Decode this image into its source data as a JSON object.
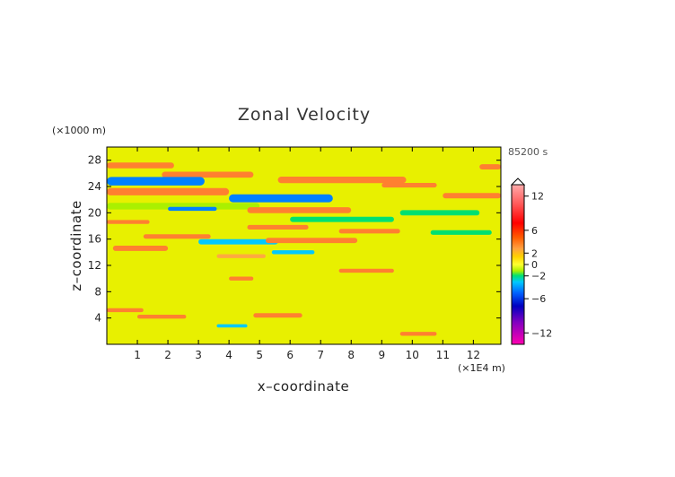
{
  "chart_data": {
    "type": "heatmap",
    "title": "Zonal Velocity",
    "xlabel": "x–coordinate",
    "ylabel": "z–coordinate",
    "x_unit": "(×1E4 m)",
    "y_unit": "(×1000 m)",
    "time_label": "85200 s",
    "xlim": [
      0,
      12.9
    ],
    "ylim": [
      0,
      30
    ],
    "x_ticks": [
      1,
      2,
      3,
      4,
      5,
      6,
      7,
      8,
      9,
      10,
      11,
      12
    ],
    "y_ticks": [
      4,
      8,
      12,
      16,
      20,
      24,
      28
    ],
    "colorbar": {
      "ticks": [
        12,
        6,
        2,
        0,
        -2,
        -6,
        -12
      ],
      "vmin": -14,
      "vmax": 14,
      "extend_top": true
    },
    "bands": [
      {
        "y": 27.2,
        "x0": 0.0,
        "x1": 2.2,
        "v": 3.0,
        "h": 0.9
      },
      {
        "y": 27.0,
        "x0": 12.2,
        "x1": 12.9,
        "v": 3.0,
        "h": 0.8
      },
      {
        "y": 25.8,
        "x0": 1.8,
        "x1": 4.8,
        "v": 3.0,
        "h": 0.9
      },
      {
        "y": 24.8,
        "x0": 0.0,
        "x1": 3.2,
        "v": -5.0,
        "h": 1.3
      },
      {
        "y": 25.0,
        "x0": 5.6,
        "x1": 9.8,
        "v": 3.0,
        "h": 1.0
      },
      {
        "y": 24.2,
        "x0": 9.0,
        "x1": 10.8,
        "v": 3.0,
        "h": 0.7
      },
      {
        "y": 23.2,
        "x0": 0.0,
        "x1": 4.0,
        "v": 3.0,
        "h": 1.1
      },
      {
        "y": 22.2,
        "x0": 4.0,
        "x1": 7.4,
        "v": -5.0,
        "h": 1.2
      },
      {
        "y": 22.6,
        "x0": 11.0,
        "x1": 12.9,
        "v": 3.0,
        "h": 0.8
      },
      {
        "y": 21.0,
        "x0": 0.0,
        "x1": 5.0,
        "v": -1.0,
        "h": 1.0
      },
      {
        "y": 20.6,
        "x0": 2.0,
        "x1": 3.6,
        "v": -4.0,
        "h": 0.6
      },
      {
        "y": 20.4,
        "x0": 4.6,
        "x1": 8.0,
        "v": 3.0,
        "h": 0.9
      },
      {
        "y": 20.0,
        "x0": 9.6,
        "x1": 12.2,
        "v": -1.5,
        "h": 0.8
      },
      {
        "y": 19.0,
        "x0": 6.0,
        "x1": 9.4,
        "v": -1.5,
        "h": 0.8
      },
      {
        "y": 18.6,
        "x0": 0.0,
        "x1": 1.4,
        "v": 3.0,
        "h": 0.6
      },
      {
        "y": 17.8,
        "x0": 4.6,
        "x1": 6.6,
        "v": 3.0,
        "h": 0.7
      },
      {
        "y": 17.2,
        "x0": 7.6,
        "x1": 9.6,
        "v": 3.0,
        "h": 0.7
      },
      {
        "y": 17.0,
        "x0": 10.6,
        "x1": 12.6,
        "v": -1.5,
        "h": 0.7
      },
      {
        "y": 16.4,
        "x0": 1.2,
        "x1": 3.4,
        "v": 3.0,
        "h": 0.7
      },
      {
        "y": 15.6,
        "x0": 3.0,
        "x1": 5.6,
        "v": -3.0,
        "h": 0.8
      },
      {
        "y": 15.8,
        "x0": 5.2,
        "x1": 8.2,
        "v": 3.0,
        "h": 0.8
      },
      {
        "y": 14.6,
        "x0": 0.2,
        "x1": 2.0,
        "v": 3.0,
        "h": 0.8
      },
      {
        "y": 14.0,
        "x0": 5.4,
        "x1": 6.8,
        "v": -3.0,
        "h": 0.6
      },
      {
        "y": 13.4,
        "x0": 3.6,
        "x1": 5.2,
        "v": 2.5,
        "h": 0.6
      },
      {
        "y": 11.2,
        "x0": 7.6,
        "x1": 9.4,
        "v": 3.0,
        "h": 0.6
      },
      {
        "y": 10.0,
        "x0": 4.0,
        "x1": 4.8,
        "v": 3.0,
        "h": 0.6
      },
      {
        "y": 5.2,
        "x0": 0.0,
        "x1": 1.2,
        "v": 3.0,
        "h": 0.6
      },
      {
        "y": 4.2,
        "x0": 1.0,
        "x1": 2.6,
        "v": 3.0,
        "h": 0.6
      },
      {
        "y": 4.4,
        "x0": 4.8,
        "x1": 6.4,
        "v": 3.0,
        "h": 0.7
      },
      {
        "y": 2.8,
        "x0": 3.6,
        "x1": 4.6,
        "v": -2.5,
        "h": 0.5
      },
      {
        "y": 1.6,
        "x0": 9.6,
        "x1": 10.8,
        "v": 3.0,
        "h": 0.6
      }
    ]
  }
}
